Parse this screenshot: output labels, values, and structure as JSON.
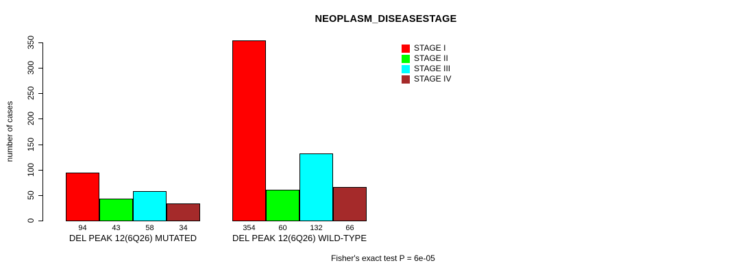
{
  "chart_data": {
    "type": "bar",
    "title": "NEOPLASM_DISEASESTAGE",
    "xlabel": "",
    "ylabel": "number of cases",
    "ylim": [
      0,
      350
    ],
    "yticks": [
      0,
      50,
      100,
      150,
      200,
      250,
      300,
      350
    ],
    "grid": false,
    "legend_position": "top-right-inside",
    "categories": [
      "DEL PEAK 12(6Q26) MUTATED",
      "DEL PEAK 12(6Q26) WILD-TYPE"
    ],
    "series": [
      {
        "name": "STAGE I",
        "color": "#ff0000",
        "values": [
          94,
          354
        ]
      },
      {
        "name": "STAGE II",
        "color": "#00ff00",
        "values": [
          43,
          60
        ]
      },
      {
        "name": "STAGE III",
        "color": "#00ffff",
        "values": [
          58,
          132
        ]
      },
      {
        "name": "STAGE IV",
        "color": "#a52a2a",
        "values": [
          34,
          66
        ]
      }
    ],
    "bar_value_labels": [
      [
        "94",
        "43",
        "58",
        "34"
      ],
      [
        "354",
        "60",
        "132",
        "66"
      ]
    ],
    "annotation": "Fisher's exact test P = 6e-05"
  }
}
